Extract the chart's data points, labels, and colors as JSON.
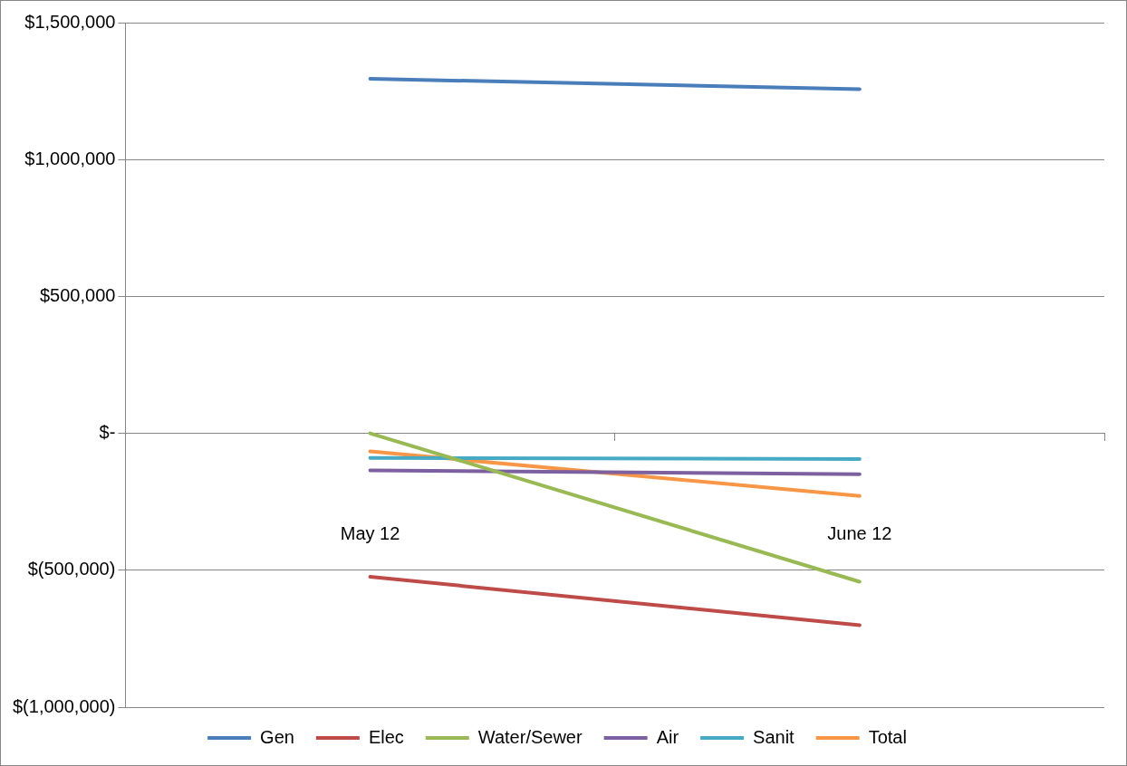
{
  "chart_data": {
    "type": "line",
    "categories": [
      "May 12",
      "June 12"
    ],
    "series": [
      {
        "name": "Gen",
        "color": "#4a7ebb",
        "values": [
          1295000,
          1257000
        ]
      },
      {
        "name": "Elec",
        "color": "#be4b48",
        "values": [
          -524000,
          -701000
        ]
      },
      {
        "name": "Water/Sewer",
        "color": "#98b954",
        "values": [
          0,
          -542000
        ]
      },
      {
        "name": "Air",
        "color": "#7d60a0",
        "values": [
          -135000,
          -149000
        ]
      },
      {
        "name": "Sanit",
        "color": "#46aac5",
        "values": [
          -90000,
          -94000
        ]
      },
      {
        "name": "Total",
        "color": "#f79646",
        "values": [
          -66000,
          -229000
        ]
      }
    ],
    "ylim": [
      -1000000,
      1500000
    ],
    "yticks": [
      {
        "value": -1000000,
        "label": "$(1,000,000)"
      },
      {
        "value": -500000,
        "label": "$(500,000)"
      },
      {
        "value": 0,
        "label": "$-"
      },
      {
        "value": 500000,
        "label": "$500,000"
      },
      {
        "value": 1000000,
        "label": "$1,000,000"
      },
      {
        "value": 1500000,
        "label": "$1,500,000"
      }
    ],
    "grid": "y",
    "legend": "bottom",
    "marker": "none",
    "line_style": "solid"
  }
}
